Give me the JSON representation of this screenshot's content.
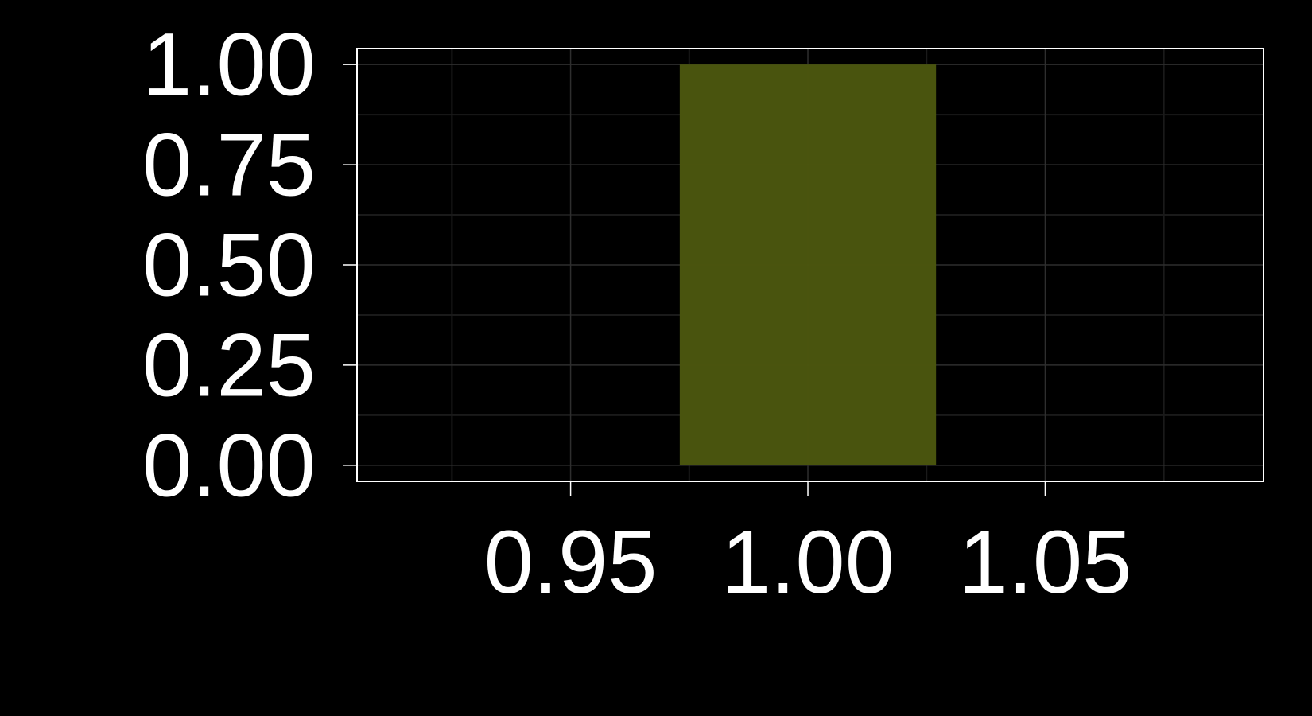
{
  "chart_data": {
    "type": "bar",
    "title": "",
    "xlabel": "",
    "ylabel": "",
    "x": [
      1.0
    ],
    "values": [
      1.0
    ],
    "bar_width": 0.054,
    "xlim": [
      0.905,
      1.096
    ],
    "ylim": [
      -0.04,
      1.04
    ],
    "x_ticks": [
      0.95,
      1.0,
      1.05
    ],
    "x_tick_labels": [
      "0.95",
      "1.00",
      "1.05"
    ],
    "y_ticks": [
      0.0,
      0.25,
      0.5,
      0.75,
      1.0
    ],
    "y_tick_labels": [
      "0.00",
      "0.25",
      "0.50",
      "0.75",
      "1.00"
    ],
    "grid": true,
    "minor_grid": true,
    "colors": {
      "background": "#000000",
      "frame": "#ffffff",
      "bar": "#4a560e",
      "grid_major": "#2e2e2e",
      "grid_minor": "#1a1a1a",
      "text": "#ffffff"
    }
  }
}
